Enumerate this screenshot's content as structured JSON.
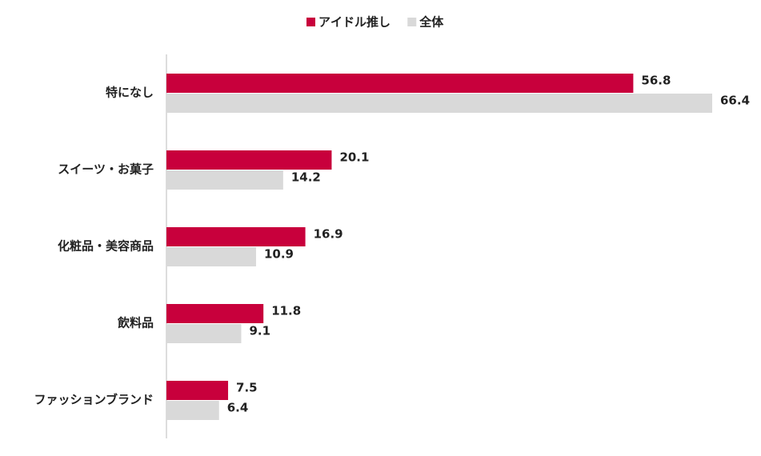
{
  "chart_data": {
    "type": "bar",
    "orientation": "horizontal",
    "categories": [
      "特になし",
      "スイーツ・お菓子",
      "化粧品・美容商品",
      "飲料品",
      "ファッションブランド"
    ],
    "series": [
      {
        "name": "アイドル推し",
        "color": "#c8003c",
        "values": [
          56.8,
          20.1,
          16.9,
          11.8,
          7.5
        ]
      },
      {
        "name": "全体",
        "color": "#d9d9d9",
        "values": [
          66.4,
          14.2,
          10.9,
          9.1,
          6.4
        ]
      }
    ],
    "legend": "top"
  }
}
